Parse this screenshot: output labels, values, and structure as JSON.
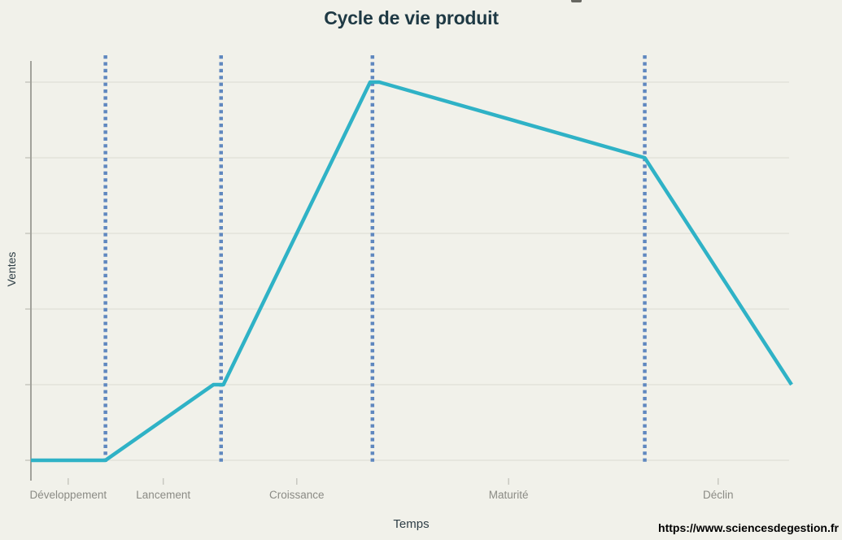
{
  "chart_data": {
    "type": "line",
    "title": "Cycle de vie produit",
    "xlabel": "Temps",
    "ylabel": "Ventes",
    "x_axis": {
      "unit": "percent_of_axis",
      "range": [
        0,
        100
      ],
      "tick_labels_shown": false
    },
    "y_axis": {
      "range": [
        0,
        5
      ],
      "tick_labels_shown": false
    },
    "gridlines_y": [
      0,
      1,
      2,
      3,
      4,
      5
    ],
    "grid": true,
    "legend": false,
    "phases": [
      {
        "label": "Développement",
        "start": 0,
        "end": 9.8
      },
      {
        "label": "Lancement",
        "start": 9.8,
        "end": 25.0
      },
      {
        "label": "Croissance",
        "start": 25.0,
        "end": 44.9
      },
      {
        "label": "Maturité",
        "start": 44.9,
        "end": 80.7
      },
      {
        "label": "Déclin",
        "start": 80.7,
        "end": 100
      }
    ],
    "phase_boundaries_dotted": [
      9.8,
      25.0,
      44.9,
      80.7
    ],
    "series": [
      {
        "name": "Ventes",
        "color": "#2fb2c6",
        "points": [
          {
            "x": 0,
            "y": 0
          },
          {
            "x": 9.8,
            "y": 0
          },
          {
            "x": 24.0,
            "y": 1
          },
          {
            "x": 25.3,
            "y": 1
          },
          {
            "x": 44.6,
            "y": 5
          },
          {
            "x": 45.8,
            "y": 5
          },
          {
            "x": 80.7,
            "y": 4
          },
          {
            "x": 100,
            "y": 1
          }
        ]
      }
    ]
  },
  "watermark": {
    "url_text": "https://www.sciencesdegestion.fr"
  },
  "colors": {
    "background": "#f1f1ea",
    "line": "#2fb2c6",
    "divider": "#5f87bf",
    "grid": "#e2e2d9",
    "tick": "#c8c8c0",
    "axis": "#a2a29b",
    "phase_label": "#8b8b85",
    "title": "#1e3944",
    "axis_title": "#2e3e46",
    "url": "#000000"
  }
}
